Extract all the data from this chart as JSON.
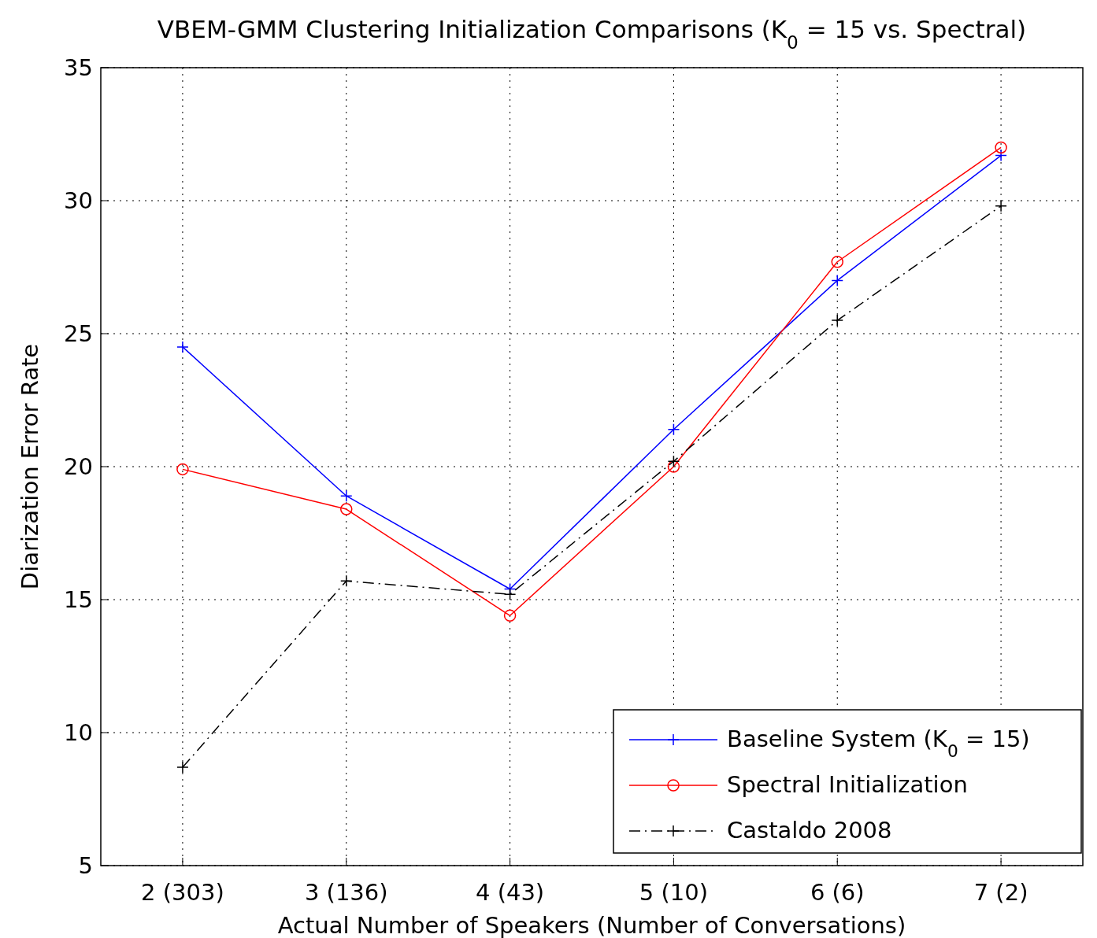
{
  "chart_data": {
    "type": "line",
    "title": "VBEM-GMM Clustering Initialization Comparisons (K$_{0}$ = 15 vs. Spectral)",
    "xlabel": "Actual Number of Speakers (Number of Conversations)",
    "ylabel": "Diarization Error Rate",
    "categories": [
      "2 (303)",
      "3 (136)",
      "4 (43)",
      "5 (10)",
      "6 (6)",
      "7 (2)"
    ],
    "series": [
      {
        "name": "Baseline System (K$_{0}$ = 15)",
        "color": "#0000ff",
        "values": [
          24.5,
          18.9,
          15.4,
          21.4,
          27.0,
          31.7
        ],
        "marker": "cross",
        "line_style": "solid"
      },
      {
        "name": "Spectral Initialization",
        "color": "#ff0000",
        "values": [
          19.9,
          18.4,
          14.4,
          20.0,
          27.7,
          32.0
        ],
        "marker": "circle",
        "line_style": "solid"
      },
      {
        "name": "Castaldo 2008",
        "color": "#000000",
        "values": [
          8.7,
          15.7,
          15.2,
          20.2,
          25.5,
          29.8
        ],
        "marker": "cross",
        "line_style": "dashed"
      }
    ],
    "ylim": [
      5,
      35
    ],
    "yticks": [
      5,
      10,
      15,
      20,
      25,
      30,
      35
    ],
    "grid": true,
    "legend": "bottom right"
  }
}
